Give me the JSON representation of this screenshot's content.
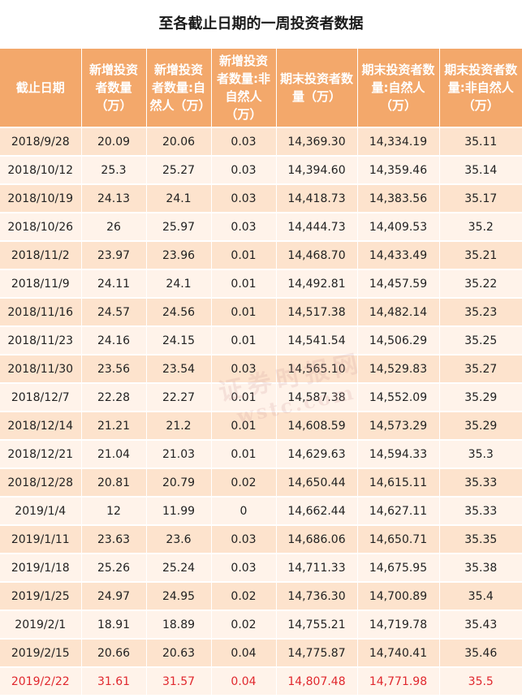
{
  "title": "至各截止日期的一周投资者数据",
  "headers": [
    "截止日期",
    "新增投资者数量（万）",
    "新增投资者数量:自然人（万）",
    "新增投资者数量:非自然人（万）",
    "期末投资者数量（万）",
    "期末投资者数量:自然人（万）",
    "期末投资者数量:非自然人（万）"
  ],
  "rows": [
    [
      "2018/9/28",
      "20.09",
      "20.06",
      "0.03",
      "14,369.30",
      "14,334.19",
      "35.11"
    ],
    [
      "2018/10/12",
      "25.3",
      "25.27",
      "0.03",
      "14,394.60",
      "14,359.46",
      "35.14"
    ],
    [
      "2018/10/19",
      "24.13",
      "24.1",
      "0.03",
      "14,418.73",
      "14,383.56",
      "35.17"
    ],
    [
      "2018/10/26",
      "26",
      "25.97",
      "0.03",
      "14,444.73",
      "14,409.53",
      "35.2"
    ],
    [
      "2018/11/2",
      "23.97",
      "23.96",
      "0.01",
      "14,468.70",
      "14,433.49",
      "35.21"
    ],
    [
      "2018/11/9",
      "24.11",
      "24.1",
      "0.01",
      "14,492.81",
      "14,457.59",
      "35.22"
    ],
    [
      "2018/11/16",
      "24.57",
      "24.56",
      "0.01",
      "14,517.38",
      "14,482.14",
      "35.23"
    ],
    [
      "2018/11/23",
      "24.16",
      "24.15",
      "0.01",
      "14,541.54",
      "14,506.29",
      "35.25"
    ],
    [
      "2018/11/30",
      "23.56",
      "23.54",
      "0.03",
      "14,565.10",
      "14,529.83",
      "35.27"
    ],
    [
      "2018/12/7",
      "22.28",
      "22.27",
      "0.01",
      "14,587.38",
      "14,552.09",
      "35.29"
    ],
    [
      "2018/12/14",
      "21.21",
      "21.2",
      "0.01",
      "14,608.59",
      "14,573.29",
      "35.29"
    ],
    [
      "2018/12/21",
      "21.04",
      "21.03",
      "0.01",
      "14,629.63",
      "14,594.33",
      "35.3"
    ],
    [
      "2018/12/28",
      "20.81",
      "20.79",
      "0.02",
      "14,650.44",
      "14,615.11",
      "35.33"
    ],
    [
      "2019/1/4",
      "12",
      "11.99",
      "0",
      "14,662.44",
      "14,627.11",
      "35.33"
    ],
    [
      "2019/1/11",
      "23.63",
      "23.6",
      "0.03",
      "14,686.06",
      "14,650.71",
      "35.35"
    ],
    [
      "2019/1/18",
      "25.26",
      "25.24",
      "0.03",
      "14,711.33",
      "14,675.95",
      "35.38"
    ],
    [
      "2019/1/25",
      "24.97",
      "24.95",
      "0.02",
      "14,736.30",
      "14,700.89",
      "35.4"
    ],
    [
      "2019/2/1",
      "18.91",
      "18.89",
      "0.02",
      "14,755.21",
      "14,719.78",
      "35.43"
    ],
    [
      "2019/2/15",
      "20.66",
      "20.63",
      "0.04",
      "14,775.87",
      "14,740.41",
      "35.46"
    ],
    [
      "2019/2/22",
      "31.61",
      "31.57",
      "0.04",
      "14,807.48",
      "14,771.98",
      "35.5"
    ]
  ],
  "highlight_row": 19,
  "colors": {
    "header_bg": "#f3a86b",
    "row_dark": "#fde3cd",
    "row_light": "#fff3ea",
    "highlight_text": "#e0282e"
  },
  "watermark": {
    "line1": "证券时报网",
    "line2": "wstc.com"
  }
}
